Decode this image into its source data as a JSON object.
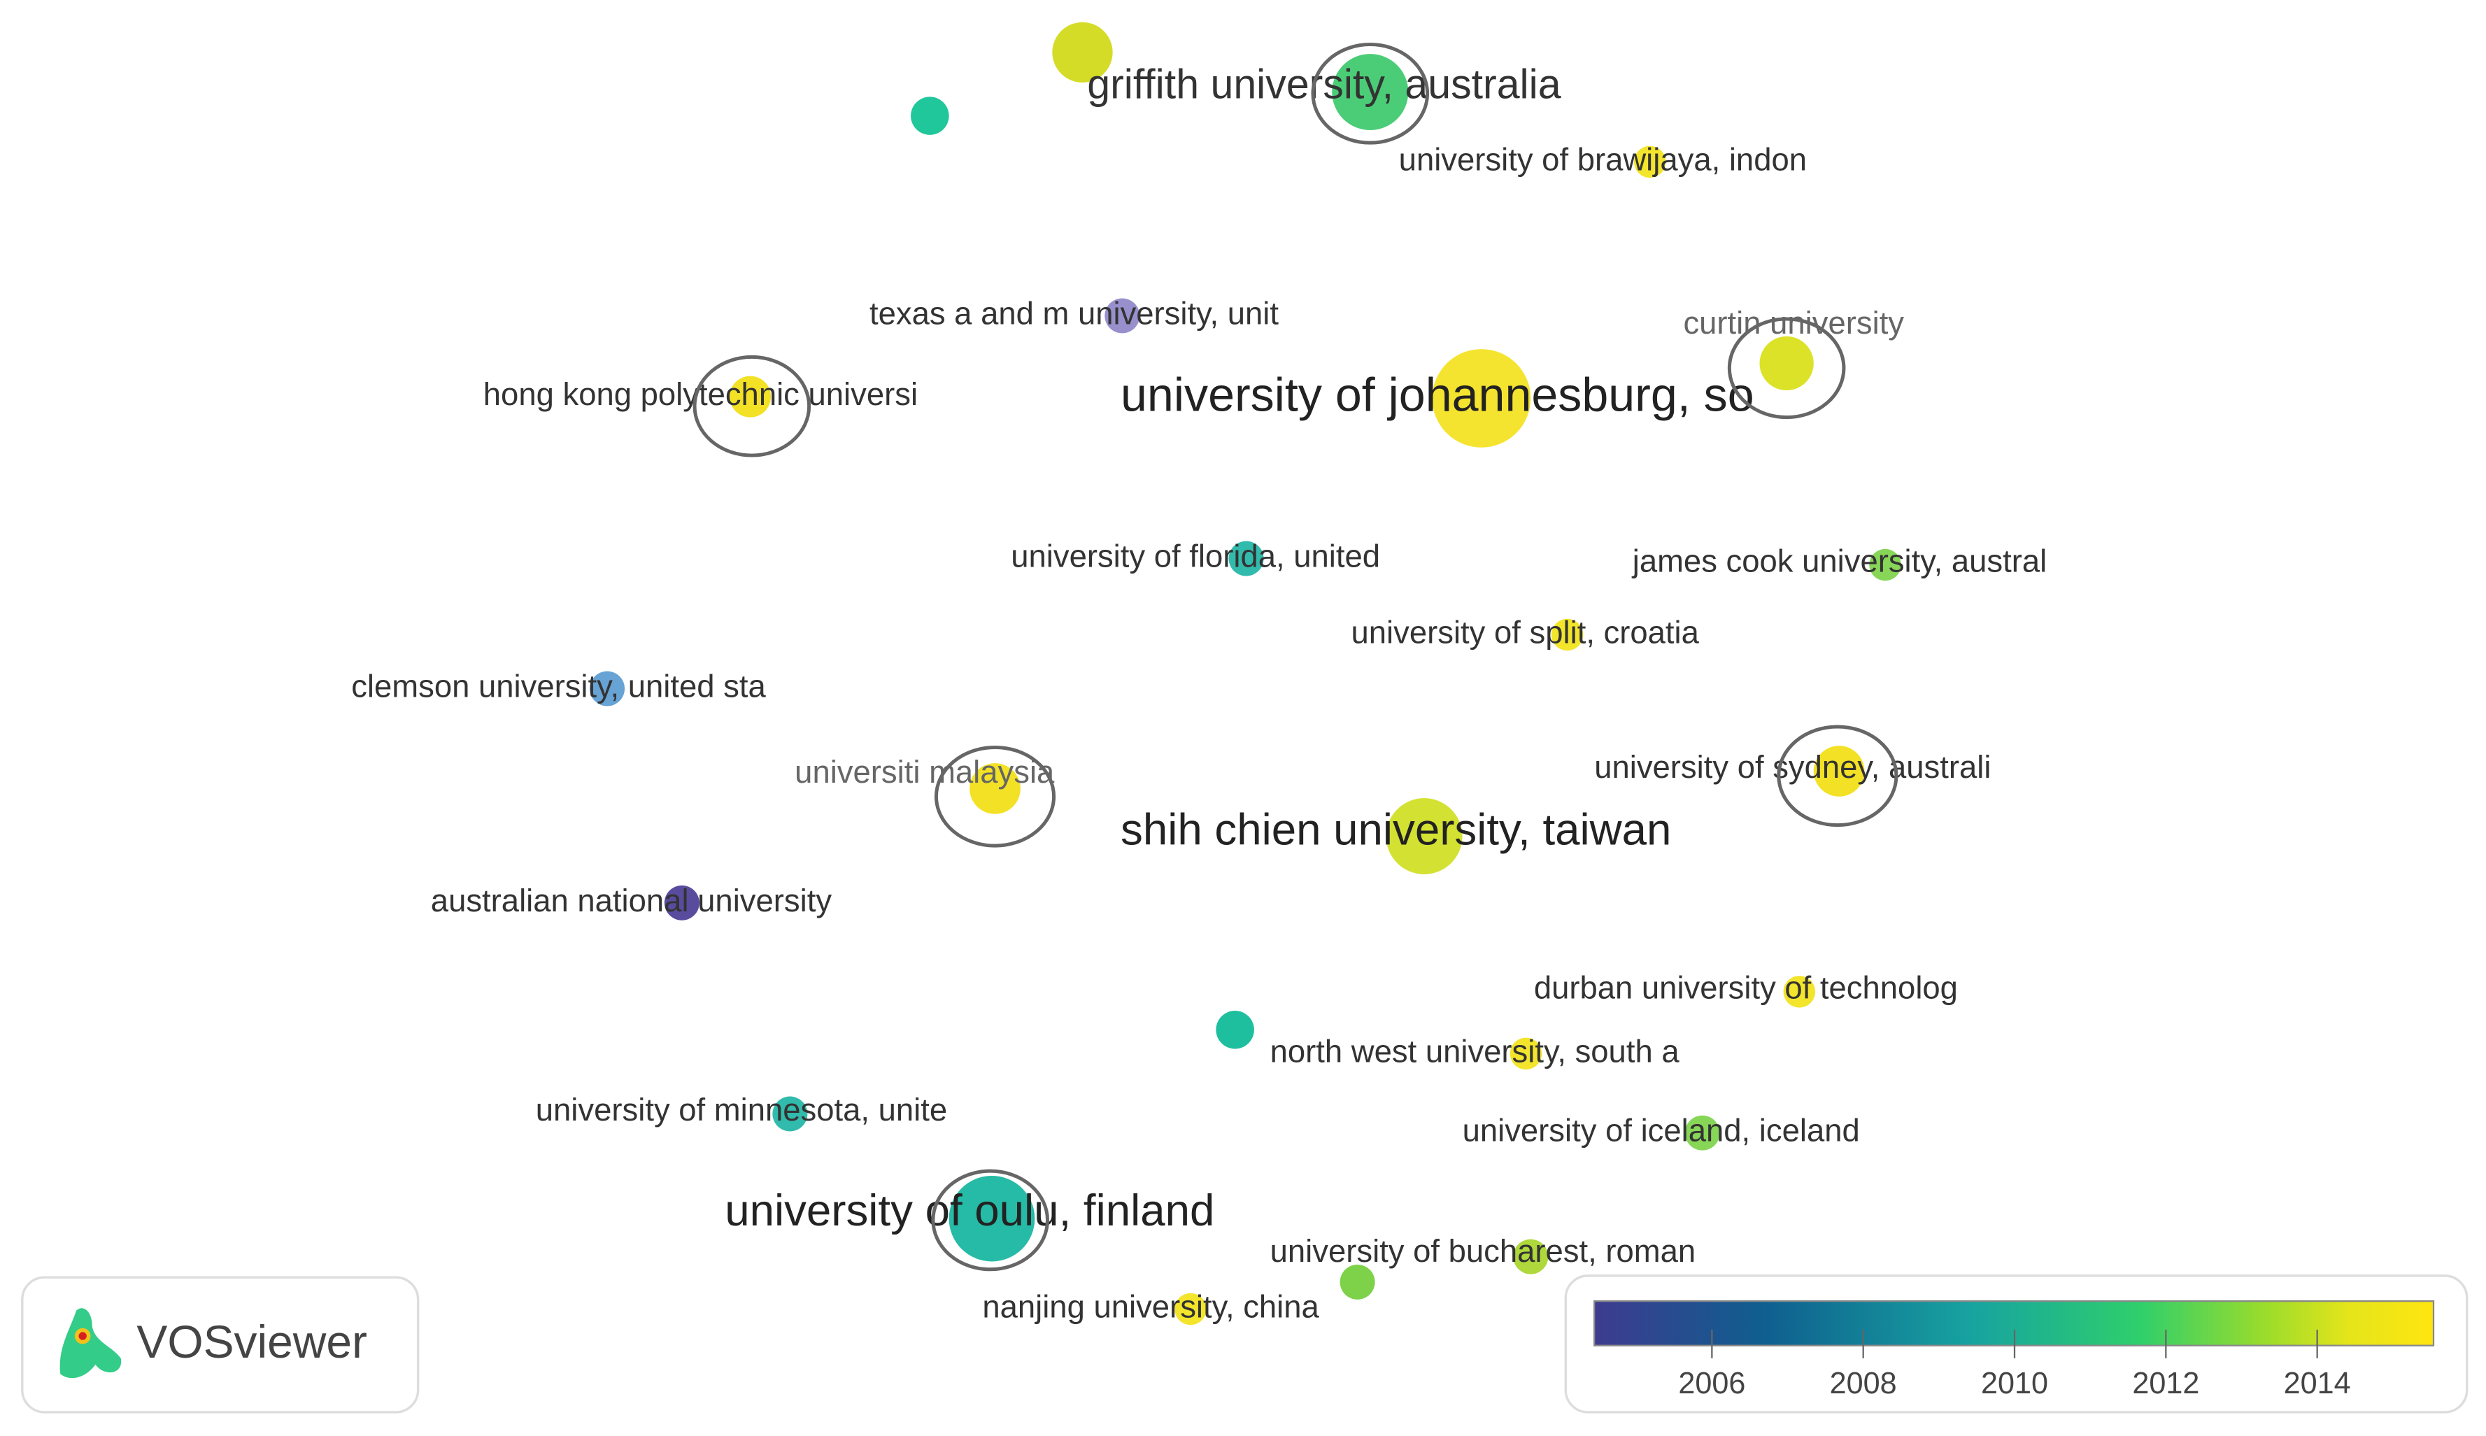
{
  "nodes": [
    {
      "label": "griffith university, australia",
      "color": "#3cc96b"
    },
    {
      "label": "university of brawijaya, indon",
      "color": "#f2e21a"
    },
    {
      "label": "texas a and m university, unit",
      "color": "#8f87c9"
    },
    {
      "label": "curtin university",
      "color": "#d9df15"
    },
    {
      "label": "hong kong polytechnic universi",
      "color": "#f2de12"
    },
    {
      "label": "university of johannesburg, so",
      "color": "#f4e21d"
    },
    {
      "label": "university of florida, united",
      "color": "#1fb5a5"
    },
    {
      "label": "james cook university, austral",
      "color": "#7dd24a"
    },
    {
      "label": "university of split, croatia",
      "color": "#f2e21a"
    },
    {
      "label": "clemson university, united sta",
      "color": "#5a9bd0"
    },
    {
      "label": "universiti malaysia",
      "color": "#f2de12"
    },
    {
      "label": "university of sydney, australi",
      "color": "#f2de12"
    },
    {
      "label": "shih chien university, taiwan",
      "color": "#cfe021"
    },
    {
      "label": "australian national university",
      "color": "#4b3d96"
    },
    {
      "label": "durban university of technolog",
      "color": "#f2e21a"
    },
    {
      "label": "north west university, south a",
      "color": "#f2e21a"
    },
    {
      "label": "university of minnesota, unite",
      "color": "#1fb5a5"
    },
    {
      "label": "university of iceland, iceland",
      "color": "#7dd24a"
    },
    {
      "label": "university of oulu, finland",
      "color": "#13b59e"
    },
    {
      "label": "university of bucharest, roman",
      "color": "#a7d52a"
    },
    {
      "label": "nanjing university, china",
      "color": "#f2e21a"
    }
  ],
  "legend": {
    "ticks": [
      2006,
      2008,
      2010,
      2012,
      2014
    ]
  },
  "logo": "VOSviewer"
}
